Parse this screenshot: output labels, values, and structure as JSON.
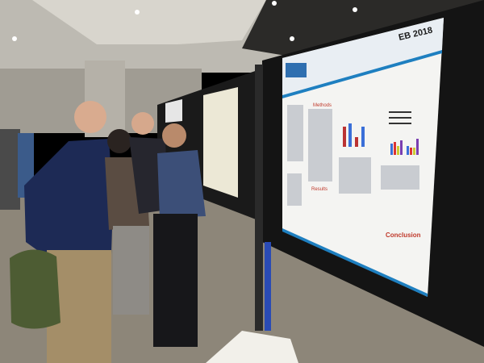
{
  "scene": {
    "description_type": "photo",
    "poster": {
      "conference_logo": "EB 2018",
      "sections": [
        "Methods",
        "Results",
        "Conclusion"
      ],
      "accent_color": "#1e7fc0",
      "heading_color": "#c0392b"
    },
    "colors": {
      "ceiling": "#c9c6bf",
      "board": "#141414",
      "floor": "#8d8679",
      "sweater": "#1d2a55",
      "shirt": "#3c4f78"
    }
  }
}
